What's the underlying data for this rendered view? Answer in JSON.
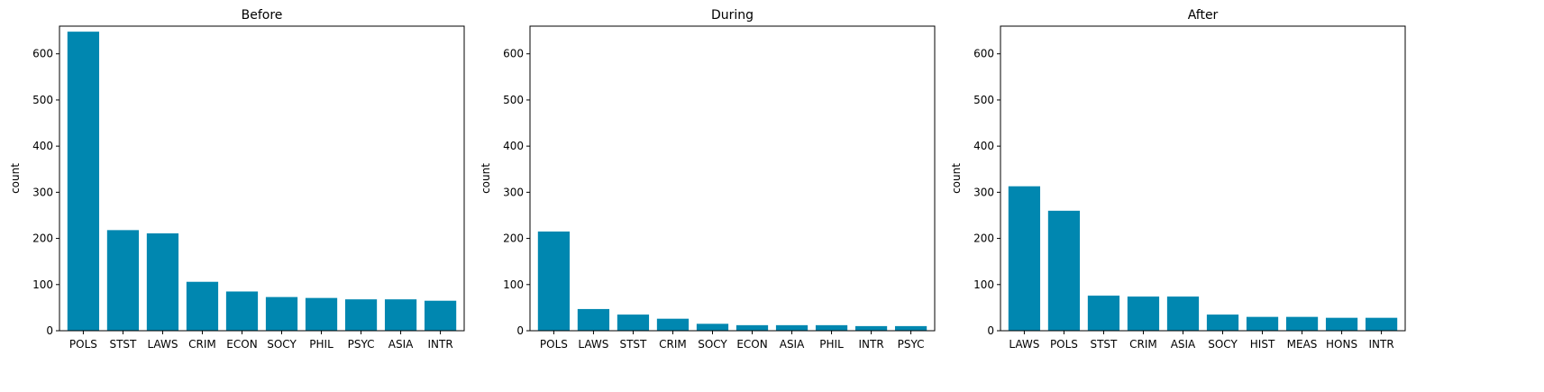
{
  "chart_data": [
    {
      "type": "bar",
      "title": "Before",
      "ylabel": "count",
      "xlabel": "",
      "ylim": [
        0,
        660
      ],
      "yticks": [
        0,
        100,
        200,
        300,
        400,
        500,
        600
      ],
      "color": "#0087b0",
      "categories": [
        "POLS",
        "STST",
        "LAWS",
        "CRIM",
        "ECON",
        "SOCY",
        "PHIL",
        "PSYC",
        "ASIA",
        "INTR"
      ],
      "values": [
        648,
        218,
        211,
        106,
        85,
        73,
        71,
        68,
        68,
        65
      ]
    },
    {
      "type": "bar",
      "title": "During",
      "ylabel": "count",
      "xlabel": "",
      "ylim": [
        0,
        660
      ],
      "yticks": [
        0,
        100,
        200,
        300,
        400,
        500,
        600
      ],
      "color": "#0087b0",
      "categories": [
        "POLS",
        "LAWS",
        "STST",
        "CRIM",
        "SOCY",
        "ECON",
        "ASIA",
        "PHIL",
        "INTR",
        "PSYC"
      ],
      "values": [
        215,
        47,
        35,
        26,
        15,
        12,
        12,
        12,
        10,
        10
      ]
    },
    {
      "type": "bar",
      "title": "After",
      "ylabel": "count",
      "xlabel": "",
      "ylim": [
        0,
        660
      ],
      "yticks": [
        0,
        100,
        200,
        300,
        400,
        500,
        600
      ],
      "color": "#0087b0",
      "categories": [
        "LAWS",
        "POLS",
        "STST",
        "CRIM",
        "ASIA",
        "SOCY",
        "HIST",
        "MEAS",
        "HONS",
        "INTR"
      ],
      "values": [
        313,
        260,
        76,
        74,
        74,
        35,
        30,
        30,
        28,
        28
      ]
    }
  ]
}
